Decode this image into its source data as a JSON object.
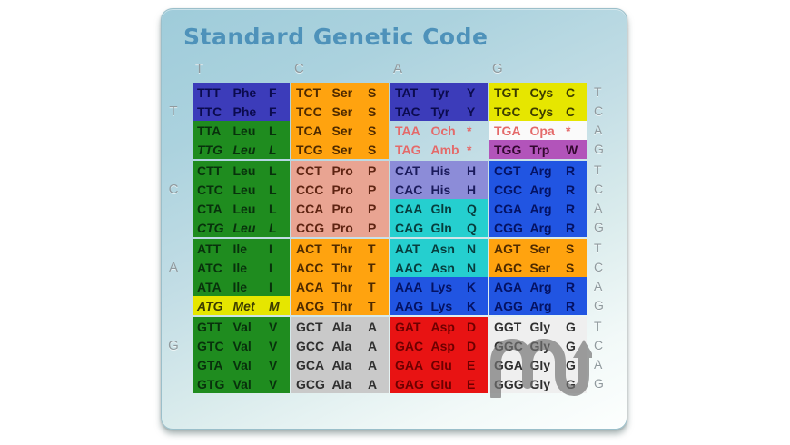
{
  "window": {
    "title": "Standard Genetic Code"
  },
  "palette": {
    "blue": {
      "bg": "#3c3cba",
      "fg": "#0b0b4e"
    },
    "green": {
      "bg": "#1f8c1f",
      "fg": "#08310c"
    },
    "orange": {
      "bg": "#ffa30f",
      "fg": "#4e2a00"
    },
    "yellow": {
      "bg": "#e6e600",
      "fg": "#3c3c00"
    },
    "purple": {
      "bg": "#b254ba",
      "fg": "#33082f"
    },
    "salmon": {
      "bg": "#e9a492",
      "fg": "#5e2412"
    },
    "periwinkle": {
      "bg": "#8c8cd8",
      "fg": "#1b1b5c"
    },
    "cyan": {
      "bg": "#25cfcf",
      "fg": "#073d3d"
    },
    "brightblue": {
      "bg": "#2155e2",
      "fg": "#041263"
    },
    "gray": {
      "bg": "#c9c9c9",
      "fg": "#2f2f2f"
    },
    "lightgray": {
      "bg": "#efefef",
      "fg": "#2f2f2f"
    },
    "red": {
      "bg": "#e81313",
      "fg": "#6e0000"
    },
    "stop": {
      "bg": "transparent",
      "fg": "#e46a6a"
    },
    "stopwhite": {
      "bg": "#fafafa",
      "fg": "#e46a6a"
    }
  },
  "table": {
    "column_headers": [
      "T",
      "C",
      "A",
      "G"
    ],
    "blocks": [
      {
        "row_label": "T",
        "rows": [
          {
            "right_label": "T",
            "cells": [
              {
                "codon": "TTT",
                "aa": "Phe",
                "sym": "F",
                "color": "blue",
                "italic": false
              },
              {
                "codon": "TCT",
                "aa": "Ser",
                "sym": "S",
                "color": "orange",
                "italic": false
              },
              {
                "codon": "TAT",
                "aa": "Tyr",
                "sym": "Y",
                "color": "blue",
                "italic": false
              },
              {
                "codon": "TGT",
                "aa": "Cys",
                "sym": "C",
                "color": "yellow",
                "italic": false
              }
            ]
          },
          {
            "right_label": "C",
            "cells": [
              {
                "codon": "TTC",
                "aa": "Phe",
                "sym": "F",
                "color": "blue",
                "italic": false
              },
              {
                "codon": "TCC",
                "aa": "Ser",
                "sym": "S",
                "color": "orange",
                "italic": false
              },
              {
                "codon": "TAC",
                "aa": "Tyr",
                "sym": "Y",
                "color": "blue",
                "italic": false
              },
              {
                "codon": "TGC",
                "aa": "Cys",
                "sym": "C",
                "color": "yellow",
                "italic": false
              }
            ]
          },
          {
            "right_label": "A",
            "cells": [
              {
                "codon": "TTA",
                "aa": "Leu",
                "sym": "L",
                "color": "green",
                "italic": false
              },
              {
                "codon": "TCA",
                "aa": "Ser",
                "sym": "S",
                "color": "orange",
                "italic": false
              },
              {
                "codon": "TAA",
                "aa": "Och",
                "sym": "*",
                "color": "stop",
                "italic": false
              },
              {
                "codon": "TGA",
                "aa": "Opa",
                "sym": "*",
                "color": "stopwhite",
                "italic": false
              }
            ]
          },
          {
            "right_label": "G",
            "cells": [
              {
                "codon": "TTG",
                "aa": "Leu",
                "sym": "L",
                "color": "green",
                "italic": true
              },
              {
                "codon": "TCG",
                "aa": "Ser",
                "sym": "S",
                "color": "orange",
                "italic": false
              },
              {
                "codon": "TAG",
                "aa": "Amb",
                "sym": "*",
                "color": "stop",
                "italic": false
              },
              {
                "codon": "TGG",
                "aa": "Trp",
                "sym": "W",
                "color": "purple",
                "italic": false
              }
            ]
          }
        ]
      },
      {
        "row_label": "C",
        "rows": [
          {
            "right_label": "T",
            "cells": [
              {
                "codon": "CTT",
                "aa": "Leu",
                "sym": "L",
                "color": "green",
                "italic": false
              },
              {
                "codon": "CCT",
                "aa": "Pro",
                "sym": "P",
                "color": "salmon",
                "italic": false
              },
              {
                "codon": "CAT",
                "aa": "His",
                "sym": "H",
                "color": "periwinkle",
                "italic": false
              },
              {
                "codon": "CGT",
                "aa": "Arg",
                "sym": "R",
                "color": "brightblue",
                "italic": false
              }
            ]
          },
          {
            "right_label": "C",
            "cells": [
              {
                "codon": "CTC",
                "aa": "Leu",
                "sym": "L",
                "color": "green",
                "italic": false
              },
              {
                "codon": "CCC",
                "aa": "Pro",
                "sym": "P",
                "color": "salmon",
                "italic": false
              },
              {
                "codon": "CAC",
                "aa": "His",
                "sym": "H",
                "color": "periwinkle",
                "italic": false
              },
              {
                "codon": "CGC",
                "aa": "Arg",
                "sym": "R",
                "color": "brightblue",
                "italic": false
              }
            ]
          },
          {
            "right_label": "A",
            "cells": [
              {
                "codon": "CTA",
                "aa": "Leu",
                "sym": "L",
                "color": "green",
                "italic": false
              },
              {
                "codon": "CCA",
                "aa": "Pro",
                "sym": "P",
                "color": "salmon",
                "italic": false
              },
              {
                "codon": "CAA",
                "aa": "Gln",
                "sym": "Q",
                "color": "cyan",
                "italic": false
              },
              {
                "codon": "CGA",
                "aa": "Arg",
                "sym": "R",
                "color": "brightblue",
                "italic": false
              }
            ]
          },
          {
            "right_label": "G",
            "cells": [
              {
                "codon": "CTG",
                "aa": "Leu",
                "sym": "L",
                "color": "green",
                "italic": true
              },
              {
                "codon": "CCG",
                "aa": "Pro",
                "sym": "P",
                "color": "salmon",
                "italic": false
              },
              {
                "codon": "CAG",
                "aa": "Gln",
                "sym": "Q",
                "color": "cyan",
                "italic": false
              },
              {
                "codon": "CGG",
                "aa": "Arg",
                "sym": "R",
                "color": "brightblue",
                "italic": false
              }
            ]
          }
        ]
      },
      {
        "row_label": "A",
        "rows": [
          {
            "right_label": "T",
            "cells": [
              {
                "codon": "ATT",
                "aa": "Ile",
                "sym": "I",
                "color": "green",
                "italic": false
              },
              {
                "codon": "ACT",
                "aa": "Thr",
                "sym": "T",
                "color": "orange",
                "italic": false
              },
              {
                "codon": "AAT",
                "aa": "Asn",
                "sym": "N",
                "color": "cyan",
                "italic": false
              },
              {
                "codon": "AGT",
                "aa": "Ser",
                "sym": "S",
                "color": "orange",
                "italic": false
              }
            ]
          },
          {
            "right_label": "C",
            "cells": [
              {
                "codon": "ATC",
                "aa": "Ile",
                "sym": "I",
                "color": "green",
                "italic": false
              },
              {
                "codon": "ACC",
                "aa": "Thr",
                "sym": "T",
                "color": "orange",
                "italic": false
              },
              {
                "codon": "AAC",
                "aa": "Asn",
                "sym": "N",
                "color": "cyan",
                "italic": false
              },
              {
                "codon": "AGC",
                "aa": "Ser",
                "sym": "S",
                "color": "orange",
                "italic": false
              }
            ]
          },
          {
            "right_label": "A",
            "cells": [
              {
                "codon": "ATA",
                "aa": "Ile",
                "sym": "I",
                "color": "green",
                "italic": false
              },
              {
                "codon": "ACA",
                "aa": "Thr",
                "sym": "T",
                "color": "orange",
                "italic": false
              },
              {
                "codon": "AAA",
                "aa": "Lys",
                "sym": "K",
                "color": "brightblue",
                "italic": false
              },
              {
                "codon": "AGA",
                "aa": "Arg",
                "sym": "R",
                "color": "brightblue",
                "italic": false
              }
            ]
          },
          {
            "right_label": "G",
            "cells": [
              {
                "codon": "ATG",
                "aa": "Met",
                "sym": "M",
                "color": "yellow",
                "italic": true
              },
              {
                "codon": "ACG",
                "aa": "Thr",
                "sym": "T",
                "color": "orange",
                "italic": false
              },
              {
                "codon": "AAG",
                "aa": "Lys",
                "sym": "K",
                "color": "brightblue",
                "italic": false
              },
              {
                "codon": "AGG",
                "aa": "Arg",
                "sym": "R",
                "color": "brightblue",
                "italic": false
              }
            ]
          }
        ]
      },
      {
        "row_label": "G",
        "rows": [
          {
            "right_label": "T",
            "cells": [
              {
                "codon": "GTT",
                "aa": "Val",
                "sym": "V",
                "color": "green",
                "italic": false
              },
              {
                "codon": "GCT",
                "aa": "Ala",
                "sym": "A",
                "color": "gray",
                "italic": false
              },
              {
                "codon": "GAT",
                "aa": "Asp",
                "sym": "D",
                "color": "red",
                "italic": false
              },
              {
                "codon": "GGT",
                "aa": "Gly",
                "sym": "G",
                "color": "lightgray",
                "italic": false
              }
            ]
          },
          {
            "right_label": "C",
            "cells": [
              {
                "codon": "GTC",
                "aa": "Val",
                "sym": "V",
                "color": "green",
                "italic": false
              },
              {
                "codon": "GCC",
                "aa": "Ala",
                "sym": "A",
                "color": "gray",
                "italic": false
              },
              {
                "codon": "GAC",
                "aa": "Asp",
                "sym": "D",
                "color": "red",
                "italic": false
              },
              {
                "codon": "GGC",
                "aa": "Gly",
                "sym": "G",
                "color": "lightgray",
                "italic": false
              }
            ]
          },
          {
            "right_label": "A",
            "cells": [
              {
                "codon": "GTA",
                "aa": "Val",
                "sym": "V",
                "color": "green",
                "italic": false
              },
              {
                "codon": "GCA",
                "aa": "Ala",
                "sym": "A",
                "color": "gray",
                "italic": false
              },
              {
                "codon": "GAA",
                "aa": "Glu",
                "sym": "E",
                "color": "red",
                "italic": false
              },
              {
                "codon": "GGA",
                "aa": "Gly",
                "sym": "G",
                "color": "lightgray",
                "italic": false
              }
            ]
          },
          {
            "right_label": "G",
            "cells": [
              {
                "codon": "GTG",
                "aa": "Val",
                "sym": "V",
                "color": "green",
                "italic": false
              },
              {
                "codon": "GCG",
                "aa": "Ala",
                "sym": "A",
                "color": "gray",
                "italic": false
              },
              {
                "codon": "GAG",
                "aa": "Glu",
                "sym": "E",
                "color": "red",
                "italic": false
              },
              {
                "codon": "GGG",
                "aa": "Gly",
                "sym": "G",
                "color": "lightgray",
                "italic": false
              }
            ]
          }
        ]
      }
    ]
  },
  "watermark": {
    "icon": "mu-arrow-logo",
    "color": "#737373"
  }
}
